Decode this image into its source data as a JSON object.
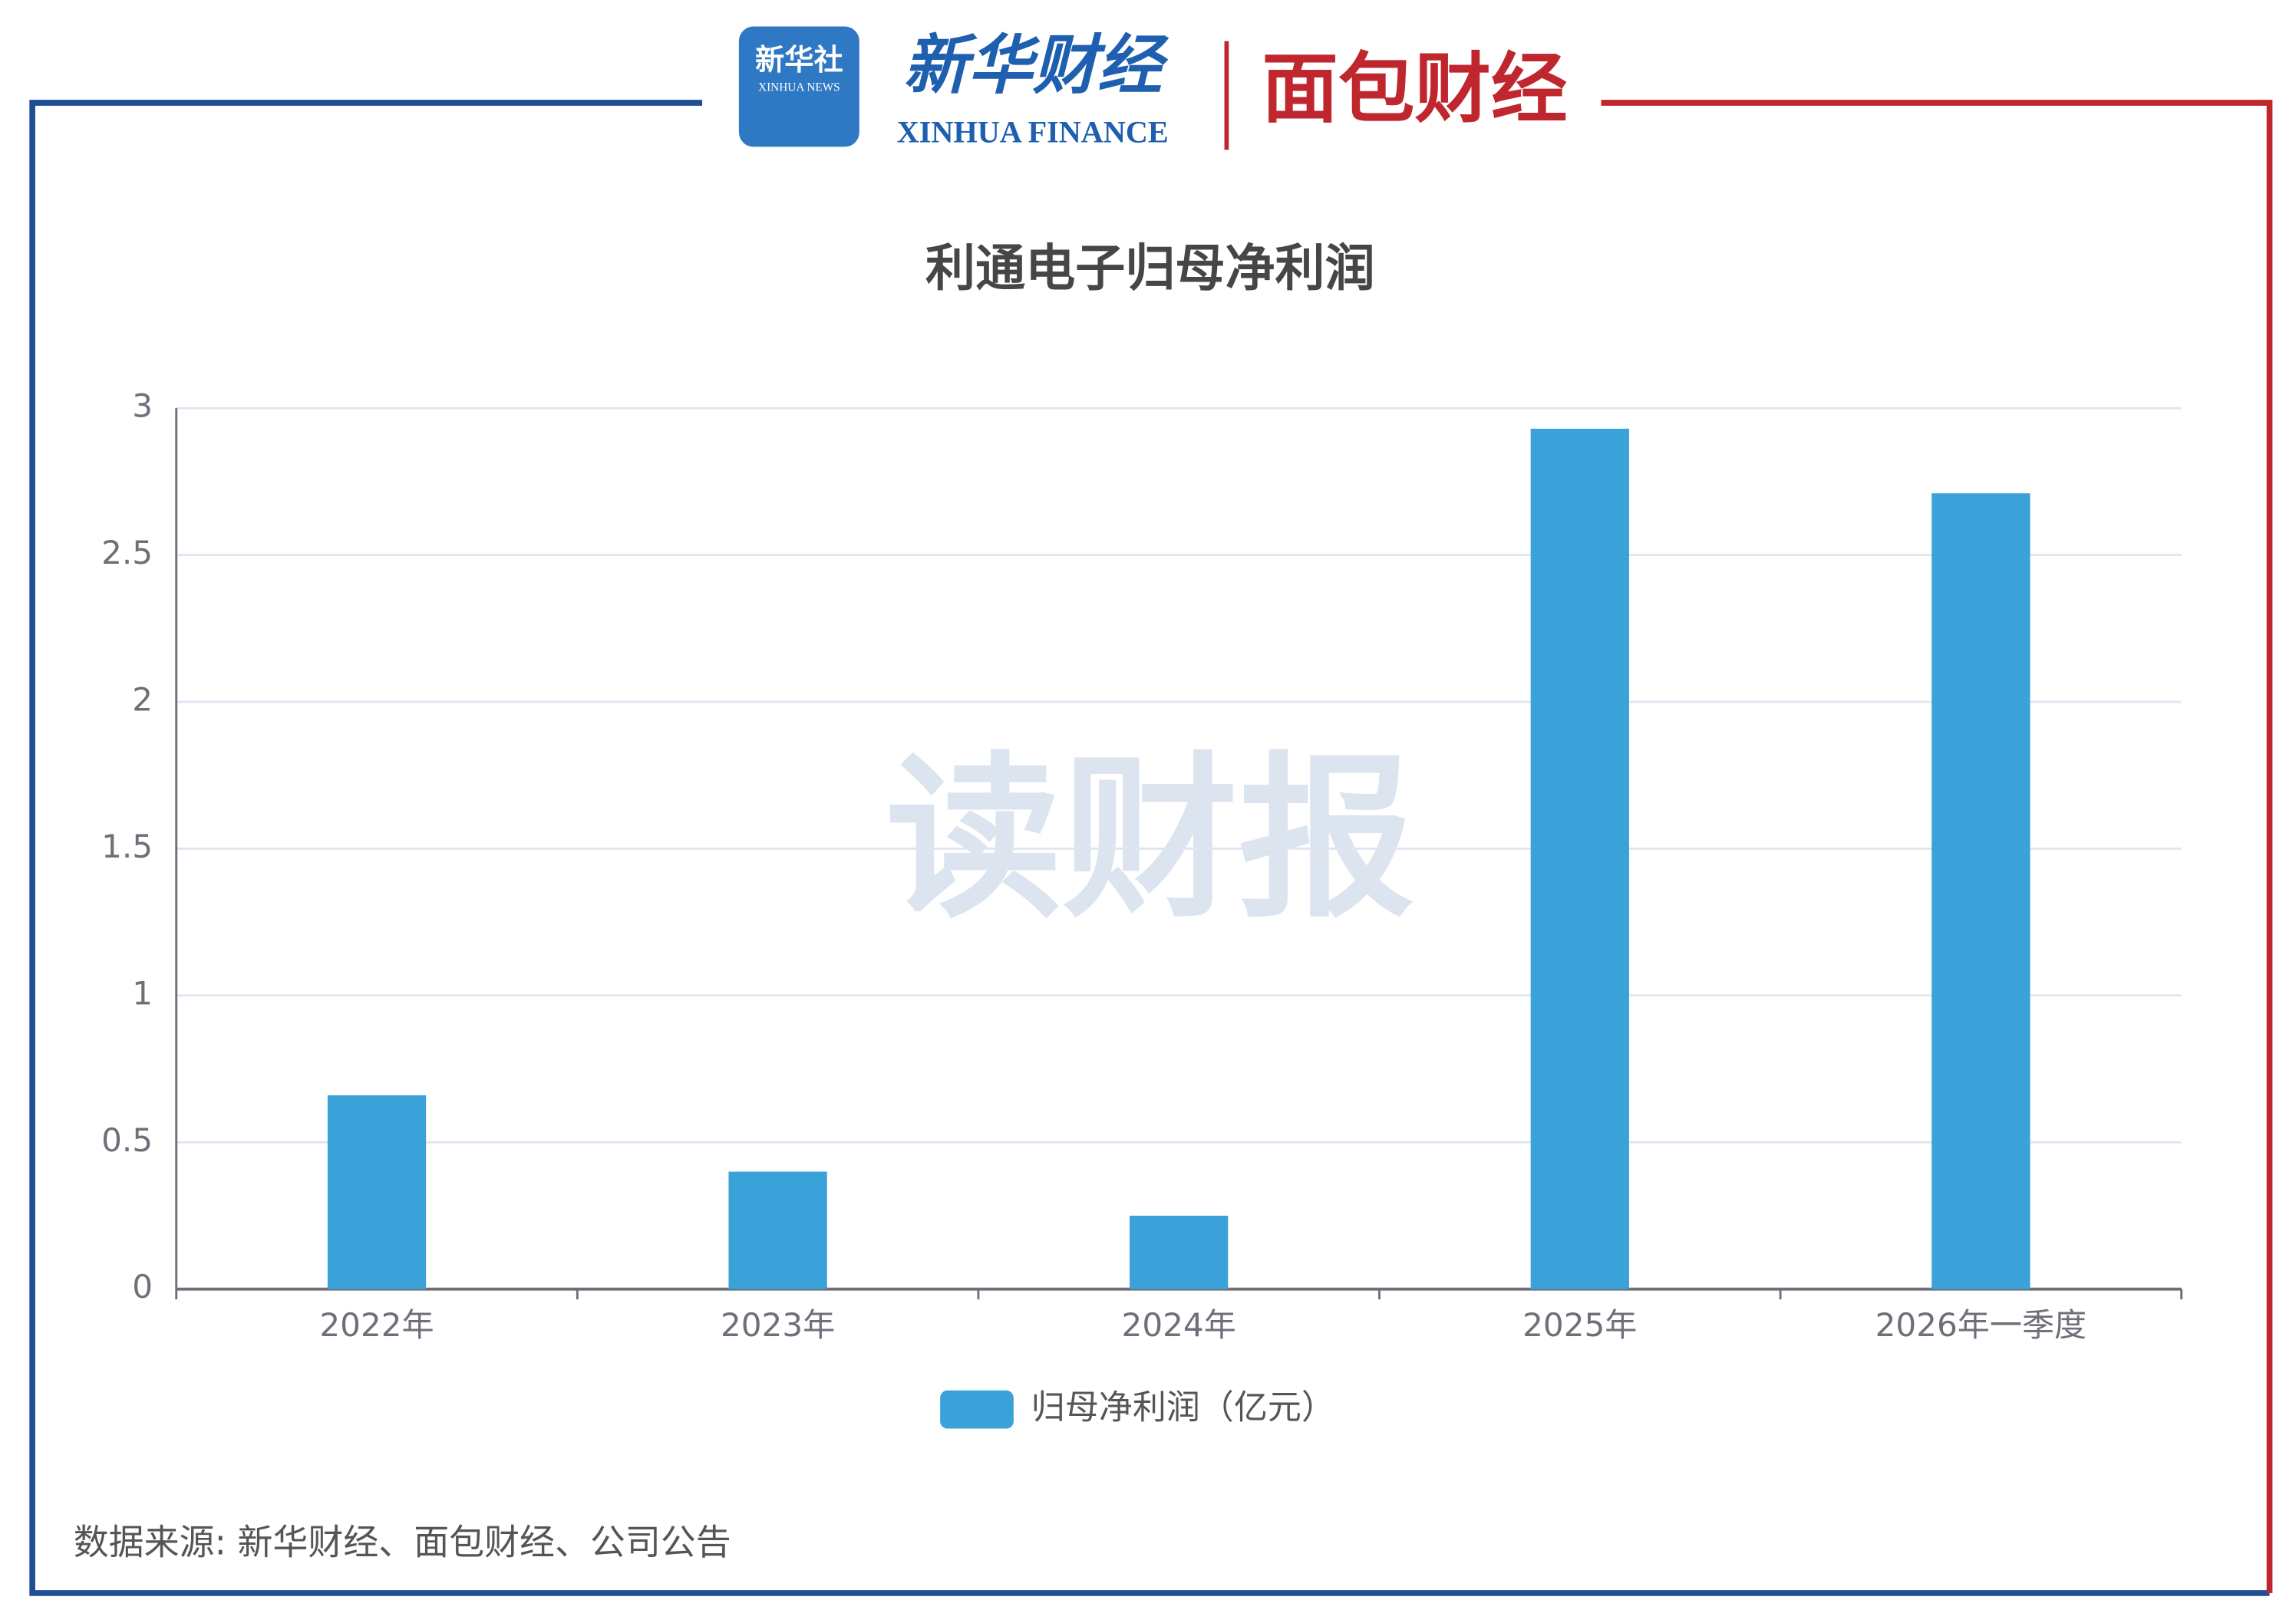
{
  "header": {
    "xinhua_news": "新华社",
    "xinhua_news_en": "XINHUA NEWS",
    "xinhua_finance": "新华财经",
    "xinhua_finance_en": "XINHUA FINANCE",
    "mianbao": "面包财经"
  },
  "watermark": "读财报",
  "source": "数据来源: 新华财经、面包财经、公司公告",
  "chart_data": {
    "type": "bar",
    "title": "利通电子归母净利润",
    "categories": [
      "2022年",
      "2023年",
      "2024年",
      "2025年",
      "2026年一季度"
    ],
    "series": [
      {
        "name": "归母净利润（亿元）",
        "color": "#3aa1d9",
        "values": [
          0.66,
          0.4,
          0.25,
          2.93,
          2.71
        ]
      }
    ],
    "ylim": [
      0,
      3
    ],
    "yticks": [
      0,
      0.5,
      1,
      1.5,
      2,
      2.5,
      3
    ],
    "grid": true,
    "legend": "bottom"
  }
}
